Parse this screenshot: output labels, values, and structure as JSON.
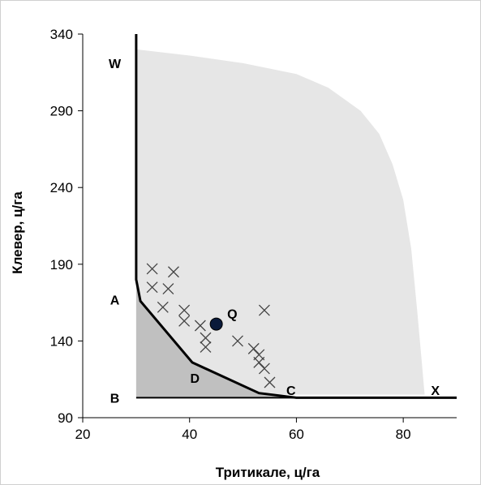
{
  "chart_data": {
    "type": "scatter",
    "title": "",
    "xlabel": "Тритикале, ц/га",
    "ylabel": "Клевер, ц/га",
    "xlim": [
      20,
      90
    ],
    "ylim": [
      90,
      340
    ],
    "x_ticks": [
      "20",
      "40",
      "60",
      "80"
    ],
    "y_ticks": [
      "90",
      "140",
      "190",
      "240",
      "290",
      "340"
    ],
    "grid": false,
    "frontier_region": {
      "color": "#e6e6e6",
      "points": [
        [
          30,
          330
        ],
        [
          40,
          326
        ],
        [
          50,
          321
        ],
        [
          60,
          314
        ],
        [
          66,
          305
        ],
        [
          72,
          290
        ],
        [
          75.5,
          275
        ],
        [
          78,
          255
        ],
        [
          80,
          232
        ],
        [
          81.5,
          200
        ],
        [
          82.6,
          160
        ],
        [
          83.5,
          125
        ],
        [
          84,
          105
        ],
        [
          30,
          105
        ]
      ]
    },
    "dominated_region": {
      "color": "#c0c0c0",
      "points": [
        [
          30,
          180
        ],
        [
          30.8,
          166
        ],
        [
          40.5,
          126
        ],
        [
          53,
          106
        ],
        [
          60,
          103
        ],
        [
          60,
          103
        ],
        [
          30,
          103
        ]
      ]
    },
    "boundary_line": {
      "color": "#000000",
      "points": [
        [
          30,
          340
        ],
        [
          30,
          180
        ],
        [
          30.8,
          166
        ],
        [
          40.5,
          126
        ],
        [
          53,
          106
        ],
        [
          60,
          103
        ],
        [
          90,
          103
        ]
      ]
    },
    "base_line": {
      "color": "#000000",
      "points": [
        [
          30,
          103
        ],
        [
          60,
          103
        ]
      ]
    },
    "observations": {
      "marker": "x",
      "points": [
        [
          33,
          187
        ],
        [
          37,
          185
        ],
        [
          33,
          175
        ],
        [
          36,
          174
        ],
        [
          35,
          162
        ],
        [
          39,
          160
        ],
        [
          39,
          153
        ],
        [
          42,
          150
        ],
        [
          43,
          142
        ],
        [
          43,
          136
        ],
        [
          49,
          140
        ],
        [
          52,
          135
        ],
        [
          53,
          131
        ],
        [
          53,
          126
        ],
        [
          54,
          122
        ],
        [
          55,
          113
        ],
        [
          54,
          160
        ]
      ]
    },
    "highlight": {
      "name": "Q",
      "x": 45,
      "y": 151,
      "color": "#000000",
      "fill": "#0a1a3a"
    },
    "annotations": [
      {
        "text": "W",
        "x": 26,
        "y": 321
      },
      {
        "text": "A",
        "x": 26,
        "y": 167
      },
      {
        "text": "B",
        "x": 26,
        "y": 103
      },
      {
        "text": "Q",
        "x": 48,
        "y": 158
      },
      {
        "text": "D",
        "x": 41,
        "y": 116
      },
      {
        "text": "C",
        "x": 59,
        "y": 108
      },
      {
        "text": "X",
        "x": 86,
        "y": 108
      }
    ]
  }
}
